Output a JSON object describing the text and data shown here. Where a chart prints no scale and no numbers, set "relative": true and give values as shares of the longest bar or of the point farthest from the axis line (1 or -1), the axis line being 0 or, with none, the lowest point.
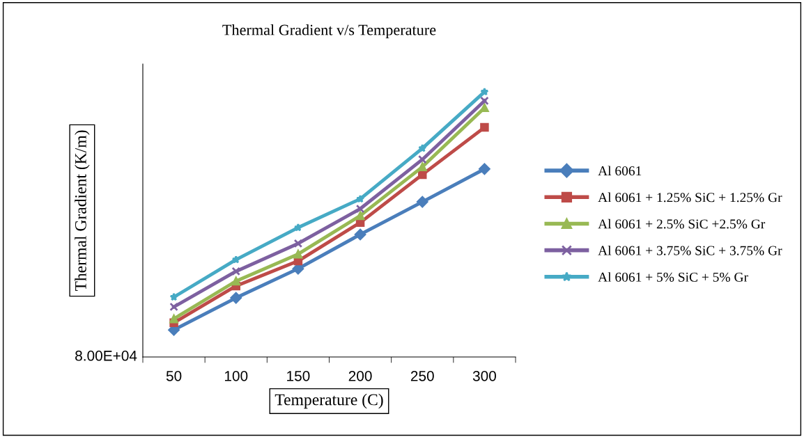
{
  "chart_data": {
    "type": "line",
    "title": "Thermal Gradient v/s Temperature",
    "xlabel": "Temperature (C)",
    "ylabel": "Thermal Gradient (K/m)",
    "categories": [
      "50",
      "100",
      "150",
      "200",
      "250",
      "300"
    ],
    "relative": true,
    "legend": "right",
    "grid": false,
    "line_style": "solid",
    "annotations": [
      "8.00E+04"
    ],
    "series": [
      {
        "name": "Al 6061",
        "color": "#4a7ebb",
        "marker": "diamond",
        "values": [
          0.102,
          0.223,
          0.333,
          0.462,
          0.585,
          0.709
        ]
      },
      {
        "name": "Al 6061 + 1.25% SiC + 1.25% Gr",
        "color": "#be4b48",
        "marker": "square",
        "values": [
          0.129,
          0.268,
          0.362,
          0.507,
          0.688,
          0.866
        ]
      },
      {
        "name": "Al 6061 + 2.5% SiC +2.5% Gr",
        "color": "#98b954",
        "marker": "triangle",
        "values": [
          0.144,
          0.286,
          0.388,
          0.533,
          0.717,
          0.94
        ]
      },
      {
        "name": "Al 6061 + 3.75% SiC + 3.75% Gr",
        "color": "#7d60a0",
        "marker": "cross",
        "values": [
          0.189,
          0.323,
          0.428,
          0.559,
          0.745,
          0.966
        ]
      },
      {
        "name": "Al 6061 + 5% SiC + 5% Gr",
        "color": "#46aac5",
        "marker": "star",
        "values": [
          0.226,
          0.367,
          0.488,
          0.596,
          0.787,
          1
        ]
      }
    ]
  }
}
